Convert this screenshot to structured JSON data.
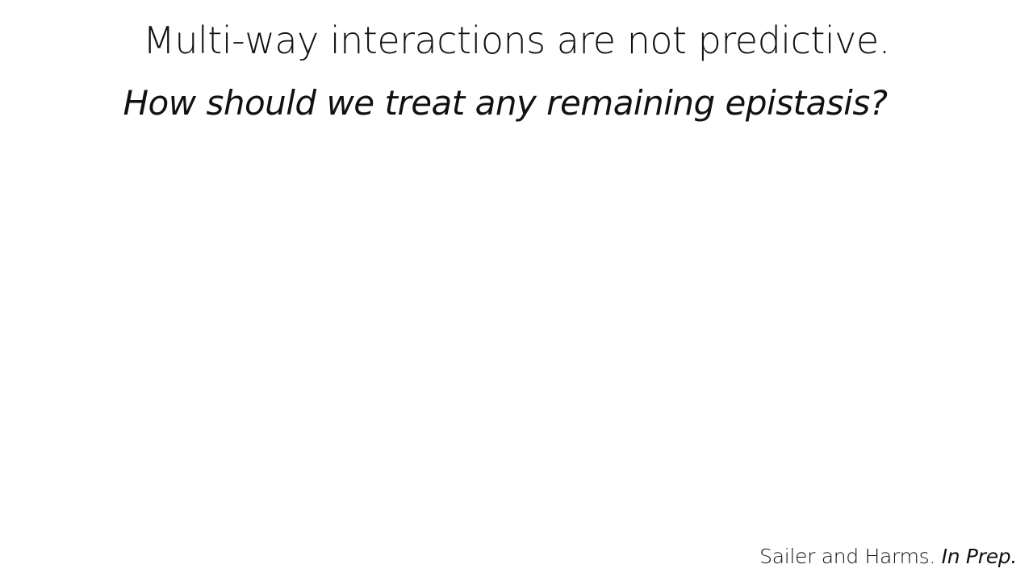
{
  "slide": {
    "title": "Multi-way interactions are not predictive.",
    "subtitle": "How should we treat any remaining epistasis?",
    "citation": {
      "authors": "Sailer and Harms.",
      "status": "In Prep."
    }
  }
}
